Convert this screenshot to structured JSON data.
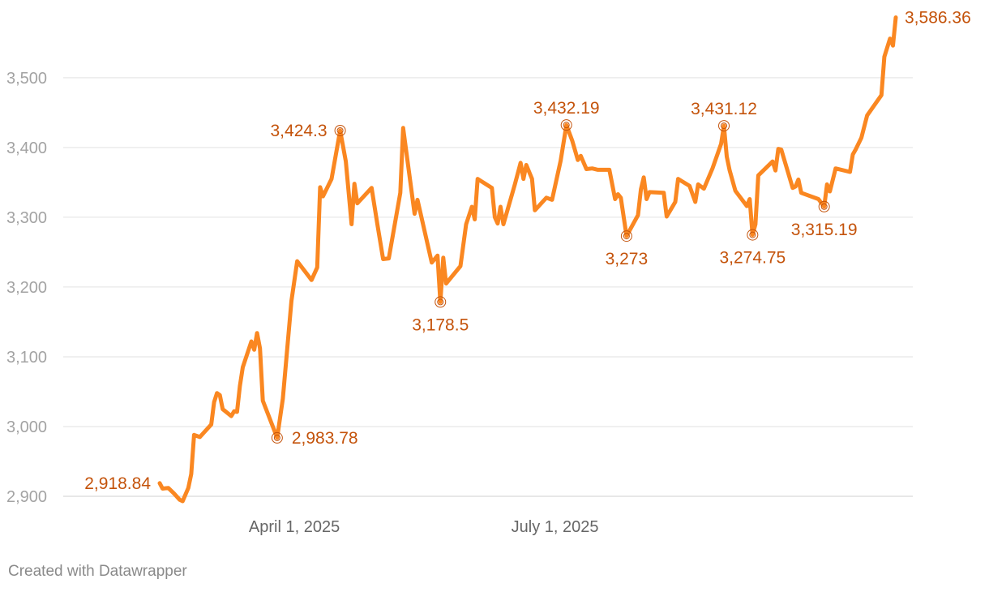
{
  "chart_data": {
    "type": "line",
    "title": "",
    "xlabel": "",
    "ylabel": "",
    "ylim": [
      2885,
      3600
    ],
    "y_ticks": [
      {
        "value": 2900,
        "label": "2,900"
      },
      {
        "value": 3000,
        "label": "3,000"
      },
      {
        "value": 3100,
        "label": "3,100"
      },
      {
        "value": 3200,
        "label": "3,200"
      },
      {
        "value": 3300,
        "label": "3,300"
      },
      {
        "value": 3400,
        "label": "3,400"
      },
      {
        "value": 3500,
        "label": "3,500"
      }
    ],
    "x_ticks": [
      {
        "date": "2025-04-01",
        "label": "April 1, 2025"
      },
      {
        "date": "2025-07-01",
        "label": "July 1, 2025"
      }
    ],
    "grid": true,
    "line_color": "#fa8721",
    "annotation_color": "#c4530b",
    "series": [
      {
        "values": [
          [
            "2025-02-13",
            2918.84
          ],
          [
            "2025-02-14",
            2911
          ],
          [
            "2025-02-16",
            2912
          ],
          [
            "2025-02-18",
            2904
          ],
          [
            "2025-02-20",
            2895
          ],
          [
            "2025-02-21",
            2893
          ],
          [
            "2025-02-23",
            2912
          ],
          [
            "2025-02-24",
            2932
          ],
          [
            "2025-02-25",
            2988
          ],
          [
            "2025-02-27",
            2985
          ],
          [
            "2025-03-03",
            3003
          ],
          [
            "2025-03-04",
            3035
          ],
          [
            "2025-03-05",
            3048
          ],
          [
            "2025-03-06",
            3045
          ],
          [
            "2025-03-07",
            3025
          ],
          [
            "2025-03-10",
            3015
          ],
          [
            "2025-03-11",
            3022
          ],
          [
            "2025-03-12",
            3021
          ],
          [
            "2025-03-13",
            3058
          ],
          [
            "2025-03-14",
            3085
          ],
          [
            "2025-03-17",
            3122
          ],
          [
            "2025-03-18",
            3110
          ],
          [
            "2025-03-19",
            3134
          ],
          [
            "2025-03-20",
            3112
          ],
          [
            "2025-03-21",
            3037
          ],
          [
            "2025-03-26",
            2983.78
          ],
          [
            "2025-03-28",
            3040
          ],
          [
            "2025-03-31",
            3180
          ],
          [
            "2025-04-02",
            3237
          ],
          [
            "2025-04-07",
            3210
          ],
          [
            "2025-04-09",
            3228
          ],
          [
            "2025-04-10",
            3343
          ],
          [
            "2025-04-11",
            3330
          ],
          [
            "2025-04-14",
            3355
          ],
          [
            "2025-04-17",
            3424.3
          ],
          [
            "2025-04-19",
            3380
          ],
          [
            "2025-04-21",
            3290
          ],
          [
            "2025-04-22",
            3348
          ],
          [
            "2025-04-23",
            3320
          ],
          [
            "2025-04-28",
            3342
          ],
          [
            "2025-04-30",
            3290
          ],
          [
            "2025-05-02",
            3240
          ],
          [
            "2025-05-04",
            3241
          ],
          [
            "2025-05-08",
            3335
          ],
          [
            "2025-05-09",
            3428
          ],
          [
            "2025-05-13",
            3305
          ],
          [
            "2025-05-14",
            3325
          ],
          [
            "2025-05-19",
            3235
          ],
          [
            "2025-05-21",
            3245
          ],
          [
            "2025-05-22",
            3178.5
          ],
          [
            "2025-05-23",
            3242
          ],
          [
            "2025-05-24",
            3205
          ],
          [
            "2025-05-29",
            3230
          ],
          [
            "2025-05-31",
            3290
          ],
          [
            "2025-06-02",
            3315
          ],
          [
            "2025-06-03",
            3297
          ],
          [
            "2025-06-04",
            3355
          ],
          [
            "2025-06-09",
            3342
          ],
          [
            "2025-06-10",
            3300
          ],
          [
            "2025-06-11",
            3291
          ],
          [
            "2025-06-12",
            3315
          ],
          [
            "2025-06-13",
            3290
          ],
          [
            "2025-06-17",
            3347
          ],
          [
            "2025-06-19",
            3378
          ],
          [
            "2025-06-20",
            3355
          ],
          [
            "2025-06-21",
            3375
          ],
          [
            "2025-06-23",
            3355
          ],
          [
            "2025-06-24",
            3310
          ],
          [
            "2025-06-28",
            3328
          ],
          [
            "2025-06-30",
            3325
          ],
          [
            "2025-07-03",
            3381
          ],
          [
            "2025-07-05",
            3432.19
          ],
          [
            "2025-07-07",
            3410
          ],
          [
            "2025-07-09",
            3382
          ],
          [
            "2025-07-10",
            3388
          ],
          [
            "2025-07-12",
            3369
          ],
          [
            "2025-07-14",
            3370
          ],
          [
            "2025-07-16",
            3368
          ],
          [
            "2025-07-20",
            3368
          ],
          [
            "2025-07-22",
            3326
          ],
          [
            "2025-07-23",
            3333
          ],
          [
            "2025-07-24",
            3328
          ],
          [
            "2025-07-26",
            3273
          ],
          [
            "2025-07-30",
            3303
          ],
          [
            "2025-07-31",
            3340
          ],
          [
            "2025-08-01",
            3357
          ],
          [
            "2025-08-02",
            3326
          ],
          [
            "2025-08-03",
            3336
          ],
          [
            "2025-08-08",
            3335
          ],
          [
            "2025-08-09",
            3301
          ],
          [
            "2025-08-12",
            3322
          ],
          [
            "2025-08-13",
            3355
          ],
          [
            "2025-08-17",
            3345
          ],
          [
            "2025-08-19",
            3322
          ],
          [
            "2025-08-20",
            3347
          ],
          [
            "2025-08-22",
            3341
          ],
          [
            "2025-08-25",
            3370
          ],
          [
            "2025-08-28",
            3405
          ],
          [
            "2025-08-29",
            3431.12
          ],
          [
            "2025-08-30",
            3387
          ],
          [
            "2025-08-31",
            3367
          ],
          [
            "2025-09-02",
            3338
          ],
          [
            "2025-09-06",
            3316
          ],
          [
            "2025-09-07",
            3326
          ],
          [
            "2025-09-08",
            3274.75
          ],
          [
            "2025-09-09",
            3290
          ],
          [
            "2025-09-10",
            3360
          ],
          [
            "2025-09-15",
            3380
          ],
          [
            "2025-09-16",
            3367
          ],
          [
            "2025-09-17",
            3398
          ],
          [
            "2025-09-18",
            3397
          ],
          [
            "2025-09-22",
            3342
          ],
          [
            "2025-09-23",
            3344
          ],
          [
            "2025-09-24",
            3354
          ],
          [
            "2025-09-25",
            3335
          ],
          [
            "2025-10-01",
            3326
          ],
          [
            "2025-10-03",
            3315.19
          ],
          [
            "2025-10-04",
            3347
          ],
          [
            "2025-10-05",
            3337
          ],
          [
            "2025-10-07",
            3370
          ],
          [
            "2025-10-12",
            3365
          ],
          [
            "2025-10-13",
            3390
          ],
          [
            "2025-10-14",
            3397
          ],
          [
            "2025-10-16",
            3414
          ],
          [
            "2025-10-18",
            3446
          ],
          [
            "2025-10-23",
            3475
          ],
          [
            "2025-10-24",
            3530
          ],
          [
            "2025-10-26",
            3556
          ],
          [
            "2025-10-27",
            3546
          ],
          [
            "2025-10-28",
            3586.36
          ]
        ]
      }
    ],
    "annotations": [
      {
        "date": "2025-02-13",
        "value": 2918.84,
        "label": "2,918.84",
        "side": "left",
        "marker": false
      },
      {
        "date": "2025-03-26",
        "value": 2983.78,
        "label": "2,983.78",
        "side": "right",
        "marker": true
      },
      {
        "date": "2025-04-17",
        "value": 3424.3,
        "label": "3,424.3",
        "side": "left",
        "marker": true
      },
      {
        "date": "2025-05-22",
        "value": 3178.5,
        "label": "3,178.5",
        "side": "below",
        "marker": true
      },
      {
        "date": "2025-07-05",
        "value": 3432.19,
        "label": "3,432.19",
        "side": "above",
        "marker": true
      },
      {
        "date": "2025-07-26",
        "value": 3273,
        "label": "3,273",
        "side": "below",
        "marker": true
      },
      {
        "date": "2025-08-29",
        "value": 3431.12,
        "label": "3,431.12",
        "side": "above",
        "marker": true
      },
      {
        "date": "2025-09-08",
        "value": 3274.75,
        "label": "3,274.75",
        "side": "below",
        "marker": true
      },
      {
        "date": "2025-10-03",
        "value": 3315.19,
        "label": "3,315.19",
        "side": "below",
        "marker": true
      },
      {
        "date": "2025-10-28",
        "value": 3586.36,
        "label": "3,586.36",
        "side": "right",
        "marker": false
      }
    ]
  },
  "footer": {
    "credit": "Created with Datawrapper"
  }
}
